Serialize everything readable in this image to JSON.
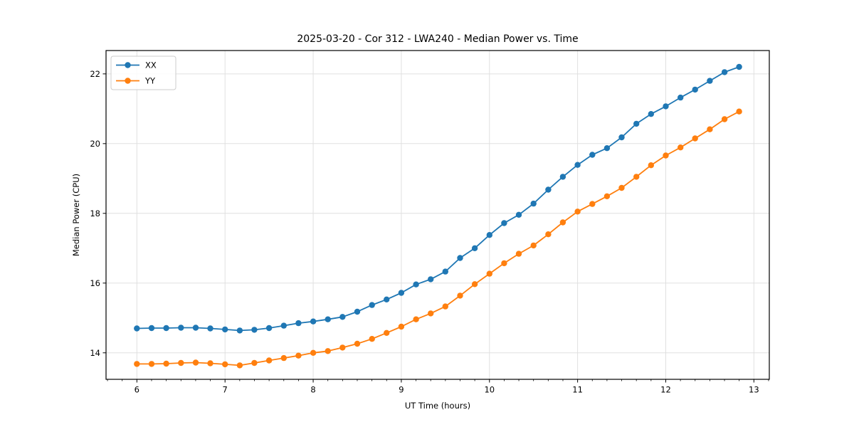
{
  "chart_data": {
    "type": "line",
    "title": "2025-03-20 - Cor 312 - LWA240 - Median Power vs. Time",
    "xlabel": "UT Time (hours)",
    "ylabel": "Median Power (CPU)",
    "xlim": [
      5.65,
      13.175
    ],
    "ylim": [
      13.24,
      22.67
    ],
    "xticks": [
      6,
      7,
      8,
      9,
      10,
      11,
      12,
      13
    ],
    "yticks": [
      14,
      16,
      18,
      20,
      22
    ],
    "x_minor_per_hour": 6,
    "grid": true,
    "grid_color": "#e0e0e0",
    "legend_position": "upper left",
    "x": [
      6.0,
      6.167,
      6.333,
      6.5,
      6.667,
      6.833,
      7.0,
      7.167,
      7.333,
      7.5,
      7.667,
      7.833,
      8.0,
      8.167,
      8.333,
      8.5,
      8.667,
      8.833,
      9.0,
      9.167,
      9.333,
      9.5,
      9.667,
      9.833,
      10.0,
      10.167,
      10.333,
      10.5,
      10.667,
      10.833,
      11.0,
      11.167,
      11.333,
      11.5,
      11.667,
      11.833,
      12.0,
      12.167,
      12.333,
      12.5,
      12.667,
      12.833
    ],
    "series": [
      {
        "name": "XX",
        "color": "#1f77b4",
        "marker": "circle",
        "values": [
          14.7,
          14.71,
          14.71,
          14.72,
          14.72,
          14.7,
          14.67,
          14.64,
          14.66,
          14.71,
          14.78,
          14.85,
          14.9,
          14.96,
          15.03,
          15.18,
          15.37,
          15.53,
          15.72,
          15.96,
          16.11,
          16.33,
          16.72,
          17.0,
          17.38,
          17.72,
          17.96,
          18.28,
          18.68,
          19.05,
          19.39,
          19.68,
          19.87,
          20.18,
          20.57,
          20.85,
          21.07,
          21.32,
          21.55,
          21.8,
          22.05,
          22.2
        ]
      },
      {
        "name": "YY",
        "color": "#ff7f0e",
        "marker": "circle",
        "values": [
          13.68,
          13.68,
          13.69,
          13.71,
          13.72,
          13.7,
          13.67,
          13.64,
          13.71,
          13.78,
          13.85,
          13.92,
          14.0,
          14.05,
          14.15,
          14.26,
          14.4,
          14.57,
          14.75,
          14.96,
          15.13,
          15.33,
          15.64,
          15.97,
          16.27,
          16.57,
          16.84,
          17.08,
          17.4,
          17.74,
          18.05,
          18.27,
          18.49,
          18.73,
          19.05,
          19.38,
          19.66,
          19.89,
          20.15,
          20.41,
          20.7,
          20.92
        ]
      }
    ]
  }
}
